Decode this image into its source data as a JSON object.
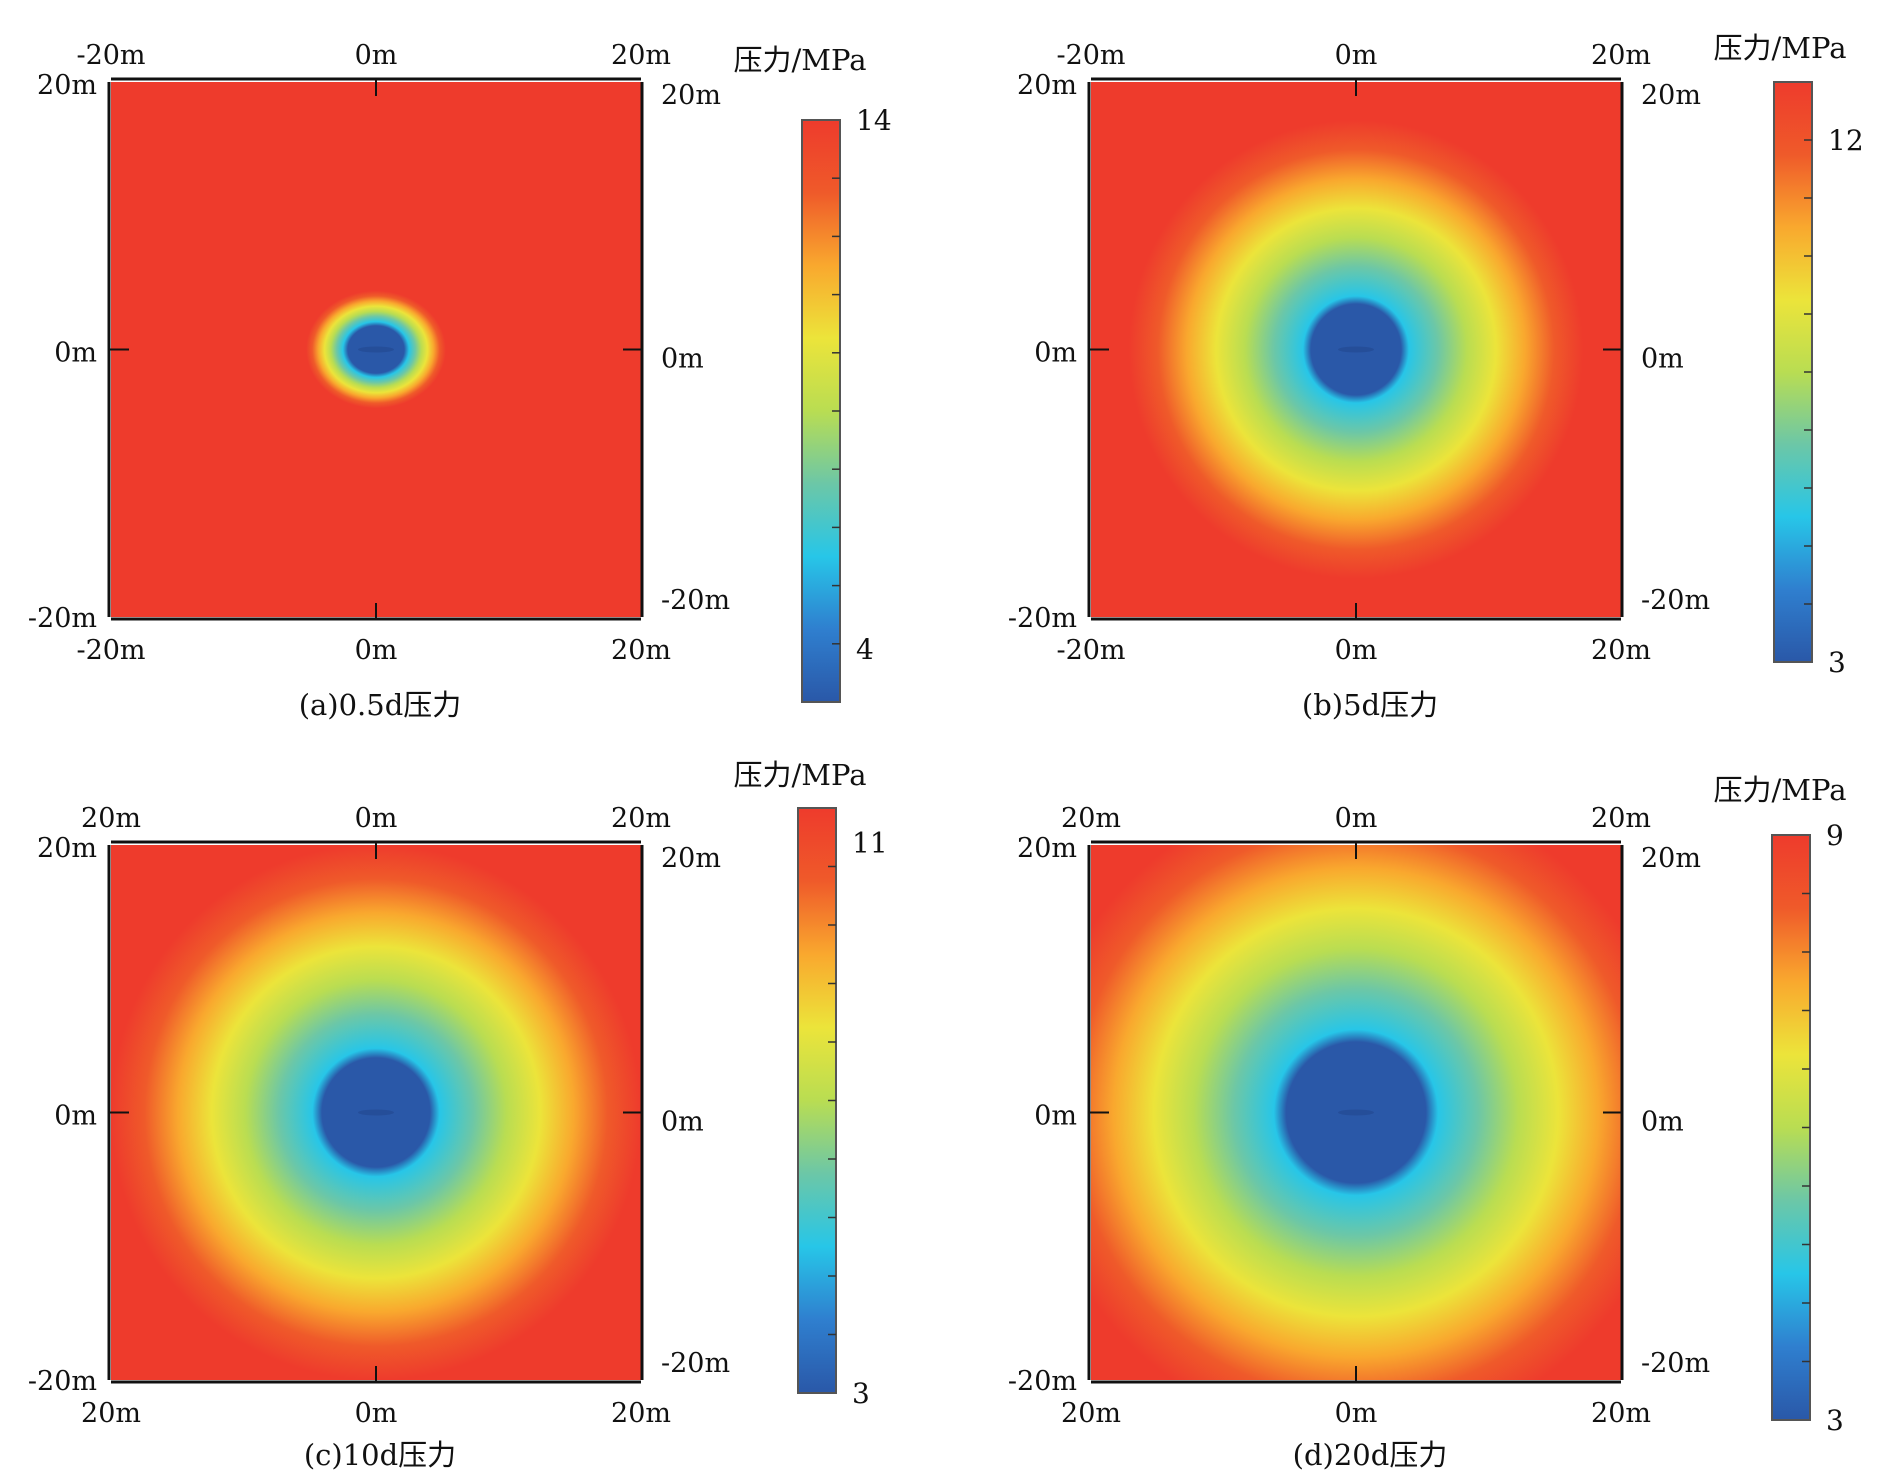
{
  "chart_data": [
    {
      "type": "heatmap",
      "caption": "(a)0.5d压力",
      "quantity": "压力",
      "colorbar": {
        "title": "压力/MPa",
        "max": 14,
        "min": 3,
        "labels": [
          "14",
          "4"
        ],
        "label_values": [
          14,
          4
        ]
      },
      "axes": {
        "top": [
          "-20m",
          "0m",
          "20m"
        ],
        "bottom": [
          "-20m",
          "0m",
          "20m"
        ],
        "left": [
          "20m",
          "0m",
          "-20m"
        ],
        "right": [
          "20m",
          "0m",
          "-20m"
        ],
        "range": [
          -20,
          20
        ]
      },
      "field": {
        "center_value": 3,
        "far_value": 14,
        "low_zone_radius_m": [
          2.5,
          1.7
        ],
        "transition_radius_m": [
          3.6,
          3.0
        ]
      },
      "colormap": [
        "#2a58a8",
        "#2f7fcf",
        "#27c6e8",
        "#6cc7a7",
        "#b9dd52",
        "#ece43a",
        "#f9a82e",
        "#ef5a2a",
        "#ee3b2c"
      ]
    },
    {
      "type": "heatmap",
      "caption": "(b)5d压力",
      "quantity": "压力",
      "colorbar": {
        "title": "压力/MPa",
        "max": 13,
        "min": 3,
        "labels": [
          "12",
          "3"
        ],
        "label_values": [
          12,
          3
        ]
      },
      "axes": {
        "top": [
          "-20m",
          "0m",
          "20m"
        ],
        "bottom": [
          "-20m",
          "0m",
          "20m"
        ],
        "left": [
          "20m",
          "0m",
          "-20m"
        ],
        "right": [
          "20m",
          "0m",
          "-20m"
        ],
        "range": [
          -20,
          20
        ]
      },
      "field": {
        "center_value": 3,
        "far_value": 13,
        "low_zone_radius_m": [
          4.0,
          3.3
        ],
        "transition_radius_m": [
          12.0,
          12.0
        ]
      },
      "colormap": [
        "#2a58a8",
        "#2f7fcf",
        "#27c6e8",
        "#6cc7a7",
        "#b9dd52",
        "#ece43a",
        "#f9a82e",
        "#ef5a2a",
        "#ee3b2c"
      ]
    },
    {
      "type": "heatmap",
      "caption": "(c)10d压力",
      "quantity": "压力",
      "colorbar": {
        "title": "压力/MPa",
        "max": 11.5,
        "min": 3,
        "labels": [
          "11",
          "3"
        ],
        "label_values": [
          11,
          3
        ]
      },
      "axes": {
        "top": [
          "20m",
          "0m",
          "20m"
        ],
        "bottom": [
          "20m",
          "0m",
          "20m"
        ],
        "left": [
          "20m",
          "0m",
          "-20m"
        ],
        "right": [
          "20m",
          "0m",
          "-20m"
        ],
        "range": [
          -20,
          20
        ]
      },
      "field": {
        "center_value": 3,
        "far_value": 11.5,
        "low_zone_radius_m": [
          4.8,
          4.0
        ],
        "transition_radius_m": [
          14.0,
          14.0
        ]
      },
      "colormap": [
        "#2a58a8",
        "#2f7fcf",
        "#27c6e8",
        "#6cc7a7",
        "#b9dd52",
        "#ece43a",
        "#f9a82e",
        "#ef5a2a",
        "#ee3b2c"
      ]
    },
    {
      "type": "heatmap",
      "caption": "(d)20d压力",
      "quantity": "压力",
      "colorbar": {
        "title": "压力/MPa",
        "max": 9,
        "min": 3,
        "labels": [
          "9",
          "3"
        ],
        "label_values": [
          9,
          3
        ]
      },
      "axes": {
        "top": [
          "20m",
          "0m",
          "20m"
        ],
        "bottom": [
          "20m",
          "0m",
          "20m"
        ],
        "left": [
          "20m",
          "0m",
          "-20m"
        ],
        "right": [
          "20m",
          "0m",
          "-20m"
        ],
        "range": [
          -20,
          20
        ]
      },
      "field": {
        "center_value": 3,
        "far_value": 9,
        "low_zone_radius_m": [
          6.2,
          5.5
        ],
        "transition_radius_m": [
          17.0,
          17.0
        ]
      },
      "colormap": [
        "#2a58a8",
        "#2f7fcf",
        "#27c6e8",
        "#6cc7a7",
        "#b9dd52",
        "#ece43a",
        "#f9a82e",
        "#ef5a2a",
        "#ee3b2c"
      ]
    }
  ]
}
